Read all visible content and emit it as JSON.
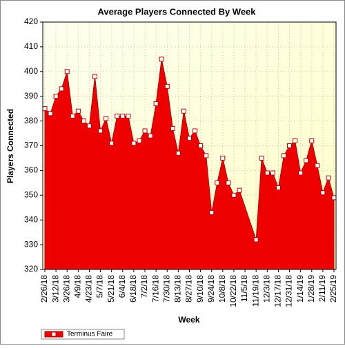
{
  "chart_data": {
    "type": "area",
    "title": "Average Players Connected By Week",
    "x_label": "Week",
    "y_label": "Players Connected",
    "x": [
      "2/26/18",
      "3/5/18",
      "3/12/18",
      "3/19/18",
      "3/26/18",
      "4/2/18",
      "4/9/18",
      "4/16/18",
      "4/23/18",
      "4/30/18",
      "5/7/18",
      "5/14/18",
      "5/21/18",
      "5/28/18",
      "6/4/18",
      "6/11/18",
      "6/18/18",
      "6/25/18",
      "7/2/18",
      "7/9/18",
      "7/16/18",
      "7/23/18",
      "7/30/18",
      "8/6/18",
      "8/13/18",
      "8/20/18",
      "8/27/18",
      "9/3/18",
      "9/10/18",
      "9/17/18",
      "9/24/18",
      "10/1/18",
      "10/8/18",
      "10/15/18",
      "10/22/18",
      "10/29/18",
      "11/19/18",
      "11/26/18",
      "12/3/18",
      "12/10/18",
      "12/17/18",
      "12/24/18",
      "12/31/18",
      "1/7/19",
      "1/14/19",
      "1/21/19",
      "1/28/19",
      "2/4/19",
      "2/11/19",
      "2/18/19",
      "2/25/19"
    ],
    "series": [
      {
        "name": "Terminus Faire",
        "color": "#ee0000",
        "values": [
          385,
          383,
          390,
          393,
          400,
          382,
          384,
          380,
          378,
          398,
          376,
          381,
          371,
          382,
          382,
          382,
          371,
          372,
          376,
          374,
          387,
          405,
          394,
          377,
          367,
          384,
          373,
          376,
          370,
          366,
          343,
          355,
          365,
          355,
          350,
          352,
          332,
          365,
          359,
          359,
          353,
          366,
          370,
          372,
          359,
          364,
          372,
          362,
          351,
          357,
          349
        ]
      }
    ],
    "xticks": [
      "2/26/18",
      "3/12/18",
      "3/26/18",
      "4/9/18",
      "4/23/18",
      "5/7/18",
      "5/21/18",
      "6/4/18",
      "6/18/18",
      "7/2/18",
      "7/16/18",
      "7/30/18",
      "8/13/18",
      "8/27/18",
      "9/10/18",
      "9/24/18",
      "10/8/18",
      "10/22/18",
      "11/5/18",
      "11/19/18",
      "12/3/18",
      "12/17/18",
      "12/31/18",
      "1/14/19",
      "1/28/19",
      "2/11/19",
      "2/25/19"
    ],
    "ylim": [
      320,
      420
    ],
    "yticks": [
      320,
      330,
      340,
      350,
      360,
      370,
      380,
      390,
      400,
      410,
      420
    ],
    "grid": true
  }
}
